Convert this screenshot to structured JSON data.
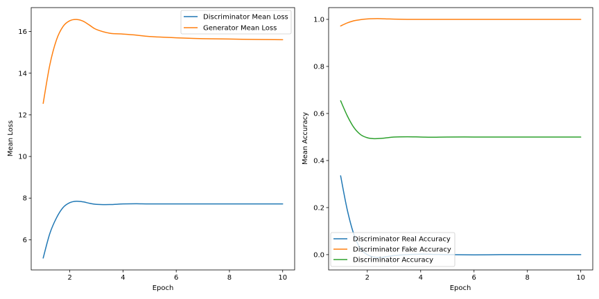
{
  "chart_data": [
    {
      "type": "line",
      "xlabel": "Epoch",
      "ylabel": "Mean Loss",
      "xlim": [
        0.55,
        10.45
      ],
      "ylim": [
        4.55,
        17.15
      ],
      "xticks": [
        2,
        4,
        6,
        8,
        10
      ],
      "yticks": [
        6,
        8,
        10,
        12,
        14,
        16
      ],
      "grid": false,
      "legend_position": "top-right",
      "x": [
        1.0,
        1.25,
        1.5,
        1.75,
        2.0,
        2.25,
        2.5,
        2.75,
        3.0,
        3.5,
        4.0,
        4.5,
        5.0,
        6.0,
        7.0,
        8.0,
        9.0,
        10.0
      ],
      "series": [
        {
          "name": "Discriminator Mean Loss",
          "color": "#1f77b4",
          "values": [
            5.12,
            6.3,
            7.05,
            7.55,
            7.78,
            7.85,
            7.82,
            7.75,
            7.7,
            7.69,
            7.72,
            7.73,
            7.72,
            7.72,
            7.72,
            7.72,
            7.72,
            7.72
          ]
        },
        {
          "name": "Generator Mean Loss",
          "color": "#ff7f0e",
          "values": [
            12.55,
            14.4,
            15.6,
            16.25,
            16.52,
            16.58,
            16.5,
            16.3,
            16.1,
            15.92,
            15.88,
            15.83,
            15.76,
            15.7,
            15.66,
            15.64,
            15.62,
            15.61
          ]
        }
      ]
    },
    {
      "type": "line",
      "xlabel": "Epoch",
      "ylabel": "Mean Accuracy",
      "xlim": [
        0.55,
        10.45
      ],
      "ylim": [
        -0.065,
        1.05
      ],
      "xticks": [
        2,
        4,
        6,
        8,
        10
      ],
      "yticks": [
        0.0,
        0.2,
        0.4,
        0.6,
        0.8,
        1.0
      ],
      "grid": false,
      "legend_position": "lower-left",
      "x": [
        1.0,
        1.25,
        1.5,
        1.75,
        2.0,
        2.25,
        2.5,
        2.75,
        3.0,
        3.5,
        4.0,
        4.5,
        5.0,
        6.0,
        7.0,
        8.0,
        9.0,
        10.0
      ],
      "series": [
        {
          "name": "Discriminator Real Accuracy",
          "color": "#1f77b4",
          "values": [
            0.335,
            0.19,
            0.085,
            0.025,
            0.0,
            -0.01,
            -0.012,
            -0.008,
            -0.004,
            0.0,
            0.002,
            0.001,
            0.0,
            -0.001,
            0.0,
            0.0,
            0.0,
            0.0
          ]
        },
        {
          "name": "Discriminator Fake Accuracy",
          "color": "#ff7f0e",
          "values": [
            0.972,
            0.985,
            0.994,
            0.999,
            1.002,
            1.003,
            1.003,
            1.002,
            1.001,
            1.0,
            1.0,
            1.0,
            1.0,
            1.0,
            1.0,
            1.0,
            1.0,
            1.0
          ]
        },
        {
          "name": "Discriminator Accuracy",
          "color": "#2ca02c",
          "values": [
            0.654,
            0.59,
            0.54,
            0.51,
            0.497,
            0.493,
            0.494,
            0.497,
            0.5,
            0.501,
            0.5,
            0.499,
            0.5,
            0.5,
            0.5,
            0.5,
            0.5,
            0.5
          ]
        }
      ]
    }
  ]
}
